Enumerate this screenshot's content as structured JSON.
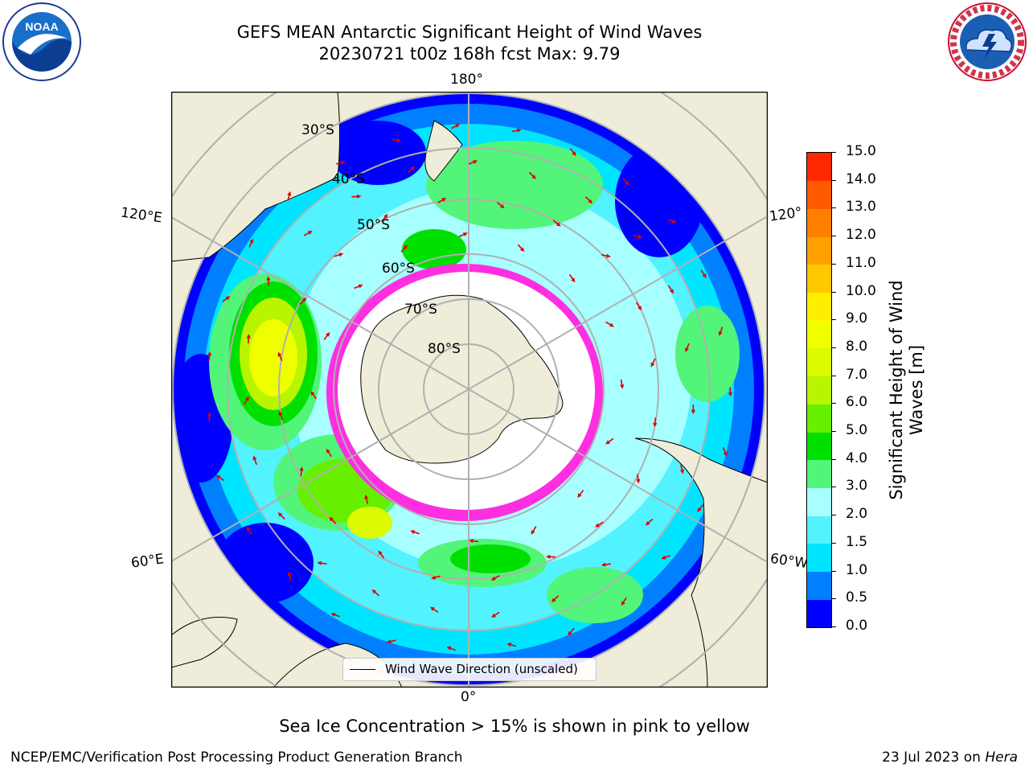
{
  "header": {
    "title_line1": "GEFS MEAN Antarctic Significant Height of Wind Waves",
    "title_line2": "20230721 t00z 168h fcst   Max: 9.79"
  },
  "logos": {
    "noaa_text": "NOAA",
    "noaa_ring": "NATIONAL OCEANIC AND ATMOSPHERIC ADMINISTRATION · U.S. DEPARTMENT OF COMMERCE ·",
    "nws_ring": "NATIONAL WEATHER SERVICE"
  },
  "map": {
    "lon_labels": {
      "top": "180°",
      "bottom": "0°",
      "left_upper": "120°E",
      "left_lower": "60°E",
      "right_upper": "120°",
      "right_lower": "60°W"
    },
    "lat_labels": [
      "30°S",
      "40°S",
      "50°S",
      "60°S",
      "70°S",
      "80°S"
    ],
    "legend_text": "Wind Wave Direction (unscaled)"
  },
  "colorbar": {
    "label": "Significant Height of Wind Waves [m]",
    "ticks": [
      "0.0",
      "0.5",
      "1.0",
      "1.5",
      "2.0",
      "3.0",
      "4.0",
      "5.0",
      "6.0",
      "7.0",
      "8.0",
      "9.0",
      "10.0",
      "11.0",
      "12.0",
      "13.0",
      "14.0",
      "15.0"
    ],
    "colors": [
      "#0000ff",
      "#0080ff",
      "#00e5ff",
      "#52f2ff",
      "#a8ffff",
      "#52f57a",
      "#00e000",
      "#66f000",
      "#b8f500",
      "#dcfa00",
      "#f0ff00",
      "#ffee00",
      "#ffc800",
      "#ffa000",
      "#ff8000",
      "#ff5a00",
      "#ff2800"
    ]
  },
  "footer": {
    "note": "Sea Ice Concentration > 15% is shown in pink to yellow",
    "left": "NCEP/EMC/Verification Post Processing Product Generation Branch",
    "date": "23 Jul 2023 on ",
    "machine": "Hera"
  }
}
